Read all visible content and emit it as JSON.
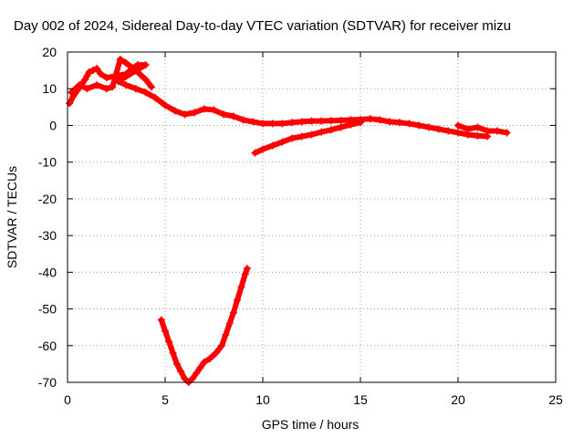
{
  "chart_data": {
    "type": "scatter",
    "title": "Day 002 of 2024, Sidereal Day-to-day VTEC variation (SDTVAR) for receiver mizu",
    "xlabel": "GPS time / hours",
    "ylabel": "SDTVAR / TECUs",
    "xlim": [
      0,
      25
    ],
    "ylim": [
      -70,
      20
    ],
    "x_ticks": [
      0,
      5,
      10,
      15,
      20,
      25
    ],
    "y_ticks": [
      20,
      10,
      0,
      -10,
      -20,
      -30,
      -40,
      -50,
      -60,
      -70
    ],
    "grid": true,
    "marker_color": "#ff0000",
    "series": [
      {
        "name": "arc-main",
        "points": [
          [
            0.1,
            6
          ],
          [
            0.3,
            8
          ],
          [
            0.5,
            9.5
          ],
          [
            0.7,
            11
          ],
          [
            0.9,
            12.5
          ],
          [
            1.0,
            13.5
          ],
          [
            1.1,
            14.5
          ],
          [
            1.3,
            15
          ],
          [
            1.5,
            15.5
          ],
          [
            1.7,
            14
          ],
          [
            2.0,
            13
          ],
          [
            2.5,
            13.5
          ],
          [
            3.0,
            14
          ],
          [
            3.3,
            15.5
          ],
          [
            3.6,
            16.5
          ],
          [
            4.0,
            16.5
          ],
          [
            2.6,
            12
          ],
          [
            3.0,
            11
          ],
          [
            3.5,
            10
          ],
          [
            4.0,
            9
          ],
          [
            4.5,
            7.5
          ],
          [
            5.0,
            5.5
          ],
          [
            5.5,
            4
          ],
          [
            6.0,
            3
          ],
          [
            6.5,
            3.5
          ],
          [
            7.0,
            4.5
          ],
          [
            7.5,
            4.2
          ],
          [
            8.0,
            3
          ],
          [
            8.5,
            2.5
          ],
          [
            9.0,
            1.5
          ],
          [
            9.5,
            1.0
          ],
          [
            10.0,
            0.5
          ],
          [
            10.5,
            0.5
          ],
          [
            11.0,
            0.5
          ],
          [
            11.5,
            0.8
          ],
          [
            12.0,
            1.0
          ],
          [
            12.5,
            1.2
          ],
          [
            13.0,
            1.2
          ],
          [
            13.5,
            1.3
          ],
          [
            14.0,
            1.4
          ],
          [
            14.5,
            1.5
          ],
          [
            15.0,
            1.6
          ],
          [
            15.5,
            1.8
          ],
          [
            16.0,
            1.5
          ],
          [
            16.5,
            1.0
          ],
          [
            17.0,
            0.8
          ],
          [
            17.5,
            0.5
          ],
          [
            18.0,
            0
          ],
          [
            18.5,
            -0.5
          ],
          [
            19.0,
            -1.0
          ],
          [
            19.5,
            -1.5
          ],
          [
            20.0,
            -2.0
          ],
          [
            20.5,
            -2.5
          ],
          [
            21.0,
            -2.8
          ],
          [
            21.5,
            -3.0
          ]
        ]
      },
      {
        "name": "arc-upper-left",
        "points": [
          [
            0.2,
            9
          ],
          [
            0.6,
            11
          ],
          [
            1.0,
            10
          ],
          [
            1.5,
            11
          ],
          [
            2.0,
            10
          ],
          [
            2.3,
            10.5
          ],
          [
            2.7,
            18
          ],
          [
            3.0,
            17
          ],
          [
            3.5,
            15
          ],
          [
            4.0,
            12.5
          ],
          [
            4.3,
            10.5
          ]
        ]
      },
      {
        "name": "arc-lower-branch",
        "points": [
          [
            9.6,
            -7.5
          ],
          [
            10.0,
            -6.5
          ],
          [
            10.5,
            -5.5
          ],
          [
            11.0,
            -4.5
          ],
          [
            11.5,
            -3.5
          ],
          [
            12.0,
            -3.0
          ],
          [
            12.5,
            -2.5
          ],
          [
            13.0,
            -1.8
          ],
          [
            13.5,
            -1.2
          ],
          [
            14.0,
            -0.5
          ],
          [
            14.5,
            0.2
          ],
          [
            15.0,
            0.8
          ]
        ]
      },
      {
        "name": "arc-tail",
        "points": [
          [
            20.0,
            0
          ],
          [
            20.5,
            -1
          ],
          [
            21.0,
            -0.5
          ],
          [
            21.5,
            -1.5
          ],
          [
            22.0,
            -1.5
          ],
          [
            22.5,
            -2.0
          ]
        ]
      },
      {
        "name": "arc-v-shape",
        "points": [
          [
            4.8,
            -53
          ],
          [
            5.0,
            -56
          ],
          [
            5.2,
            -59
          ],
          [
            5.4,
            -62
          ],
          [
            5.6,
            -65
          ],
          [
            5.8,
            -67
          ],
          [
            6.0,
            -69
          ],
          [
            6.2,
            -70
          ],
          [
            6.4,
            -69
          ],
          [
            6.6,
            -67.5
          ],
          [
            6.8,
            -66
          ],
          [
            7.0,
            -64.5
          ],
          [
            7.3,
            -63.5
          ],
          [
            7.6,
            -62
          ],
          [
            7.9,
            -60
          ],
          [
            8.1,
            -57
          ],
          [
            8.3,
            -54
          ],
          [
            8.5,
            -51
          ],
          [
            8.7,
            -47.5
          ],
          [
            8.9,
            -44
          ],
          [
            9.1,
            -40.5
          ],
          [
            9.2,
            -39
          ]
        ]
      }
    ]
  }
}
